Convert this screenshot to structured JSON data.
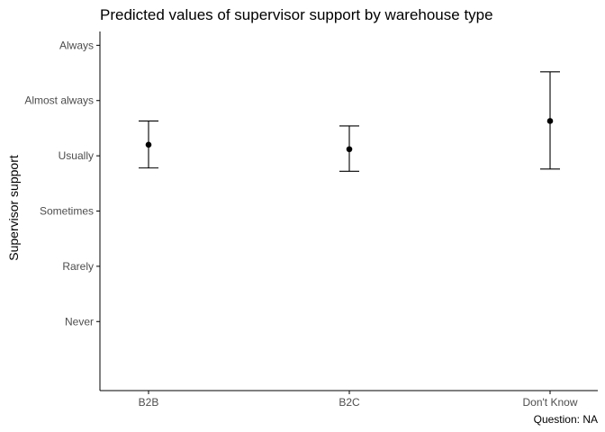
{
  "chart_data": {
    "type": "scatter",
    "title": "Predicted values of supervisor support by warehouse type",
    "ylabel": "Supervisor support",
    "xlabel": "",
    "caption": "Question: NA",
    "categories": [
      "B2B",
      "B2C",
      "Don't Know"
    ],
    "y_ticks": [
      {
        "value": 1,
        "label": "Never"
      },
      {
        "value": 2,
        "label": "Rarely"
      },
      {
        "value": 3,
        "label": "Sometimes"
      },
      {
        "value": 4,
        "label": "Usually"
      },
      {
        "value": 5,
        "label": "Almost always"
      },
      {
        "value": 6,
        "label": "Always"
      }
    ],
    "ylim": [
      -0.25,
      6.25
    ],
    "grid": false,
    "legend": "none",
    "points": [
      {
        "category": "B2B",
        "value": 4.2,
        "lower": 3.78,
        "upper": 4.63
      },
      {
        "category": "B2C",
        "value": 4.12,
        "lower": 3.72,
        "upper": 4.54
      },
      {
        "category": "Don't Know",
        "value": 4.63,
        "lower": 3.76,
        "upper": 5.52
      }
    ],
    "colors": {
      "point": "#000000",
      "errorbar": "#000000",
      "axis": "#000000",
      "tick_label": "#4d4d4d"
    }
  }
}
